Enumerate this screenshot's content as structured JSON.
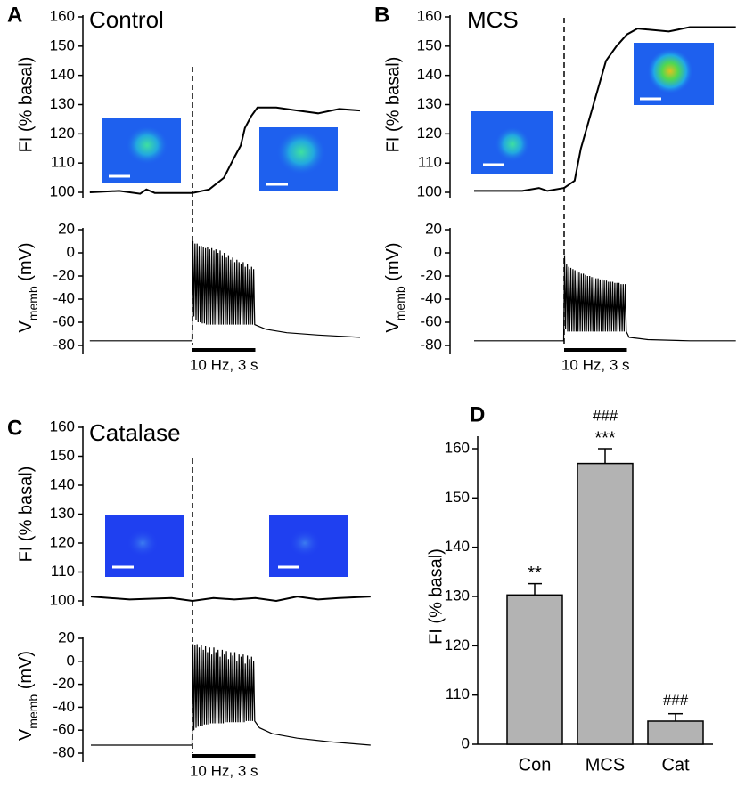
{
  "chart_data": [
    {
      "type": "trace",
      "panel_label": "A",
      "title": "Control",
      "stimulus": [
        0,
        3
      ],
      "stimulus_label": "10 Hz, 3 s",
      "fi": {
        "ylabel": "FI (% basal)",
        "ylim": [
          100,
          160
        ],
        "yticks": [
          100,
          110,
          120,
          130,
          140,
          150,
          160
        ],
        "x": [
          -4.9,
          -3.5,
          -2.5,
          -2.2,
          -1.8,
          0,
          0.8,
          1.5,
          2,
          2.3,
          2.5,
          2.8,
          3.1,
          4,
          5,
          6,
          7,
          8
        ],
        "values": [
          100,
          100.5,
          99.5,
          101,
          99.8,
          99.8,
          101,
          105,
          112,
          116,
          122,
          126,
          129,
          129,
          128,
          127,
          128.5,
          128
        ]
      },
      "vm": {
        "ylabel_parts": [
          "V",
          "memb",
          " (mV)"
        ],
        "ylim": [
          -80,
          20
        ],
        "yticks": [
          20,
          0,
          -20,
          -40,
          -60,
          -80
        ],
        "x": [
          -4.9,
          -3,
          -1,
          -0.02,
          0.02,
          0.07,
          0.12,
          0.17,
          0.22,
          0.27,
          0.32,
          0.37,
          0.42,
          0.47,
          0.52,
          0.57,
          0.62,
          0.67,
          0.72,
          0.77,
          0.82,
          0.87,
          0.92,
          0.97,
          1.02,
          1.07,
          1.12,
          1.17,
          1.22,
          1.27,
          1.32,
          1.37,
          1.42,
          1.47,
          1.52,
          1.57,
          1.62,
          1.67,
          1.72,
          1.77,
          1.82,
          1.87,
          1.92,
          1.97,
          2.02,
          2.07,
          2.12,
          2.17,
          2.22,
          2.27,
          2.32,
          2.37,
          2.42,
          2.47,
          2.52,
          2.57,
          2.62,
          2.67,
          2.72,
          2.77,
          2.82,
          2.87,
          2.92,
          2.97,
          3.1,
          3.5,
          4.5,
          6,
          8
        ],
        "values": [
          -76,
          -76,
          -76,
          -76,
          10,
          -55,
          8,
          -58,
          8,
          -60,
          6,
          -60,
          6,
          -61,
          5,
          -61,
          4,
          -62,
          5,
          -62,
          3,
          -62,
          4,
          -62,
          2,
          -62,
          3,
          -62,
          0,
          -62,
          2,
          -62,
          -2,
          -62,
          0,
          -62,
          -4,
          -62,
          -2,
          -62,
          -6,
          -62,
          -4,
          -62,
          -8,
          -62,
          -6,
          -62,
          -8,
          -62,
          -10,
          -62,
          -8,
          -62,
          -12,
          -62,
          -10,
          -62,
          -14,
          -62,
          -12,
          -62,
          -14,
          -62,
          -63,
          -66,
          -69,
          -71,
          -73
        ]
      }
    },
    {
      "type": "trace",
      "panel_label": "B",
      "title": "MCS",
      "stimulus": [
        0,
        3
      ],
      "stimulus_label": "10 Hz, 3 s",
      "fi": {
        "ylabel": "FI (% basal)",
        "ylim": [
          100,
          160
        ],
        "yticks": [
          100,
          110,
          120,
          130,
          140,
          150,
          160
        ],
        "x": [
          -4.3,
          -2,
          -1.2,
          -0.8,
          0,
          0.5,
          0.8,
          1.2,
          1.6,
          2,
          2.5,
          3,
          3.5,
          5,
          6,
          8.2
        ],
        "values": [
          100.5,
          100.5,
          101.5,
          100.5,
          101.5,
          104,
          115,
          125,
          135,
          145,
          150,
          154,
          156,
          155,
          156.5,
          156.5
        ]
      },
      "vm": {
        "ylabel_parts": [
          "V",
          "memb",
          " (mV)"
        ],
        "ylim": [
          -80,
          20
        ],
        "yticks": [
          20,
          0,
          -20,
          -40,
          -60,
          -80
        ],
        "x": [
          -4.3,
          -2,
          -0.02,
          0.02,
          0.07,
          0.12,
          0.17,
          0.22,
          0.27,
          0.32,
          0.37,
          0.42,
          0.47,
          0.52,
          0.57,
          0.62,
          0.67,
          0.72,
          0.77,
          0.82,
          0.87,
          0.92,
          0.97,
          1.02,
          1.07,
          1.12,
          1.17,
          1.22,
          1.27,
          1.32,
          1.37,
          1.42,
          1.47,
          1.52,
          1.57,
          1.62,
          1.67,
          1.72,
          1.77,
          1.82,
          1.87,
          1.92,
          1.97,
          2.02,
          2.07,
          2.12,
          2.17,
          2.22,
          2.27,
          2.32,
          2.37,
          2.42,
          2.47,
          2.52,
          2.57,
          2.62,
          2.67,
          2.72,
          2.77,
          2.82,
          2.87,
          2.92,
          2.97,
          3.1,
          4,
          6,
          8.2
        ],
        "values": [
          -76,
          -76,
          -76,
          -2,
          -66,
          -10,
          -68,
          -12,
          -68,
          -13,
          -68,
          -14,
          -68,
          -15,
          -68,
          -16,
          -68,
          -17,
          -68,
          -18,
          -68,
          -18,
          -68,
          -19,
          -68,
          -20,
          -68,
          -20,
          -68,
          -21,
          -68,
          -21,
          -68,
          -22,
          -68,
          -22,
          -68,
          -23,
          -68,
          -23,
          -68,
          -24,
          -68,
          -24,
          -68,
          -25,
          -68,
          -25,
          -68,
          -25,
          -68,
          -26,
          -68,
          -26,
          -68,
          -26,
          -68,
          -27,
          -68,
          -27,
          -68,
          -27,
          -68,
          -73,
          -75,
          -76,
          -76
        ]
      }
    },
    {
      "type": "trace",
      "panel_label": "C",
      "title": "Catalase",
      "stimulus": [
        0,
        3
      ],
      "stimulus_label": "10 Hz, 3 s",
      "fi": {
        "ylabel": "FI (% basal)",
        "ylim": [
          100,
          160
        ],
        "yticks": [
          100,
          110,
          120,
          130,
          140,
          150,
          160
        ],
        "x": [
          -4.85,
          -3,
          -1,
          0,
          1,
          2,
          3,
          4,
          5,
          6,
          7,
          8.5
        ],
        "values": [
          101.5,
          100.5,
          101,
          100,
          101,
          100.5,
          101,
          100,
          101.5,
          100.5,
          101,
          101.5
        ]
      },
      "vm": {
        "ylabel_parts": [
          "V",
          "memb",
          " (mV)"
        ],
        "ylim": [
          -80,
          20
        ],
        "yticks": [
          20,
          0,
          -20,
          -40,
          -60,
          -80
        ],
        "x": [
          -4.85,
          -3,
          -1,
          -0.02,
          0.02,
          0.07,
          0.12,
          0.17,
          0.22,
          0.27,
          0.32,
          0.37,
          0.42,
          0.47,
          0.52,
          0.57,
          0.62,
          0.67,
          0.72,
          0.77,
          0.82,
          0.87,
          0.92,
          0.97,
          1.02,
          1.07,
          1.12,
          1.17,
          1.22,
          1.27,
          1.32,
          1.37,
          1.42,
          1.47,
          1.52,
          1.57,
          1.62,
          1.67,
          1.72,
          1.77,
          1.82,
          1.87,
          1.92,
          1.97,
          2.02,
          2.07,
          2.12,
          2.17,
          2.22,
          2.27,
          2.32,
          2.37,
          2.42,
          2.47,
          2.52,
          2.57,
          2.62,
          2.67,
          2.72,
          2.77,
          2.82,
          2.87,
          2.92,
          2.97,
          3.2,
          3.8,
          5,
          6.5,
          8.5
        ],
        "values": [
          -73,
          -73,
          -73,
          -73,
          15,
          -60,
          14,
          -58,
          15,
          -57,
          12,
          -56,
          14,
          -56,
          10,
          -55,
          13,
          -55,
          8,
          -55,
          12,
          -54,
          6,
          -54,
          12,
          -54,
          8,
          -54,
          10,
          -54,
          4,
          -54,
          10,
          -54,
          6,
          -53,
          9,
          -53,
          2,
          -53,
          8,
          -53,
          5,
          -53,
          8,
          -53,
          0,
          -53,
          6,
          -53,
          4,
          -53,
          6,
          -53,
          -2,
          -52,
          5,
          -52,
          2,
          -52,
          4,
          -52,
          0,
          -52,
          -58,
          -63,
          -67,
          -70,
          -73
        ]
      }
    },
    {
      "type": "bar",
      "panel_label": "D",
      "ylabel": "FI (% basal)",
      "categories": [
        "Con",
        "MCS",
        "Cat"
      ],
      "values": [
        130.3,
        157,
        104.7
      ],
      "errors": [
        2.3,
        3,
        1.5
      ],
      "color": "#b3b3b3",
      "ylim": [
        100,
        160
      ],
      "yticks": [
        {
          "value": 100,
          "label": "0"
        },
        110,
        120,
        130,
        140,
        150,
        160
      ],
      "star_labels": [
        "**",
        "***",
        null
      ],
      "hash_labels": [
        null,
        "###",
        "###"
      ]
    }
  ]
}
